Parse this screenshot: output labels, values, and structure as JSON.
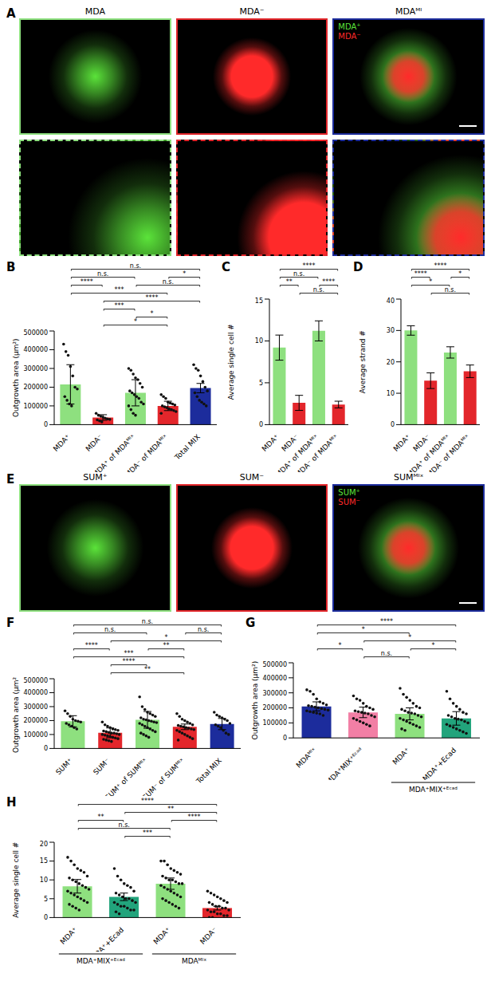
{
  "images": [
    {
      "panel": "A",
      "titles": [
        "MDA",
        "MDA⁻",
        "MDAᴹᴵ"
      ],
      "colors": [
        "#8ee07f",
        "#e3262b",
        "#1c2c9c"
      ],
      "legend": [
        {
          "name": "MDA⁺",
          "color": "#5be33a"
        },
        {
          "name": "MDA⁻",
          "color": "#ff2a2a"
        }
      ]
    },
    {
      "panel": "E",
      "titles": [
        "SUM⁺",
        "SUM⁻",
        "SUMᴹᴵˣ"
      ],
      "colors": [
        "#8ee07f",
        "#e3262b",
        "#1c2c9c"
      ],
      "legend": [
        {
          "name": "SUM⁺",
          "color": "#5be33a"
        },
        {
          "name": "SUM⁻",
          "color": "#ff2a2a"
        }
      ]
    }
  ],
  "chart_data": [
    {
      "panel": "B",
      "type": "bar",
      "ylabel": "Outgrowth area (μm²)",
      "categories": [
        "MDA⁺",
        "MDA⁻",
        "MDA⁺ of MDAᴹᴵˣ",
        "MDA⁻ of MDAᴹᴵˣ",
        "Total MIX"
      ],
      "values": [
        215000,
        38000,
        170000,
        100000,
        195000
      ],
      "errors": [
        105000,
        15000,
        70000,
        25000,
        25000
      ],
      "colors": [
        "#8ee07f",
        "#e3262b",
        "#8ee07f",
        "#e3262b",
        "#1c2c9c"
      ],
      "points": [
        [
          430000,
          390000,
          370000,
          310000,
          260000,
          200000,
          190000,
          150000,
          130000,
          110000,
          100000
        ],
        [
          60000,
          50000,
          45000,
          40000,
          35000,
          30000,
          28000,
          25000,
          20000,
          15000
        ],
        [
          300000,
          290000,
          270000,
          250000,
          240000,
          220000,
          200000,
          180000,
          170000,
          160000,
          150000,
          140000,
          120000,
          110000,
          100000,
          80000,
          60000,
          50000
        ],
        [
          160000,
          150000,
          140000,
          120000,
          115000,
          110000,
          105000,
          100000,
          95000,
          90000,
          85000,
          80000,
          75000,
          70000,
          60000
        ],
        [
          320000,
          300000,
          290000,
          260000,
          230000,
          200000,
          180000,
          170000,
          150000,
          130000,
          120000,
          110000,
          100000
        ]
      ],
      "ylim": [
        0,
        500000
      ],
      "yticks": [
        0,
        100000,
        200000,
        300000,
        400000,
        500000
      ],
      "significance": [
        {
          "from": 0,
          "to": 4,
          "label": "n.s."
        },
        {
          "from": 0,
          "to": 2,
          "label": "n.s."
        },
        {
          "from": 2,
          "to": 4,
          "label": "n.s."
        },
        {
          "from": 0,
          "to": 1,
          "label": "****"
        },
        {
          "from": 0,
          "to": 3,
          "label": "***"
        },
        {
          "from": 1,
          "to": 4,
          "label": "****"
        },
        {
          "from": 1,
          "to": 2,
          "label": "***"
        },
        {
          "from": 2,
          "to": 3,
          "label": "*"
        },
        {
          "from": 3,
          "to": 4,
          "label": "*"
        },
        {
          "from": 1,
          "to": 3,
          "label": "*"
        }
      ]
    },
    {
      "panel": "C",
      "type": "bar",
      "ylabel": "Average single cell #",
      "categories": [
        "MDA⁺",
        "MDA⁻",
        "MDA⁺ of MDAᴹᴵˣ",
        "MDA⁻ of MDAᴹᴵˣ"
      ],
      "values": [
        9.2,
        2.6,
        11.2,
        2.4
      ],
      "errors": [
        1.5,
        0.9,
        1.2,
        0.4
      ],
      "colors": [
        "#8ee07f",
        "#e3262b",
        "#8ee07f",
        "#e3262b"
      ],
      "ylim": [
        0,
        15
      ],
      "yticks": [
        0,
        5,
        10,
        15
      ],
      "significance": [
        {
          "from": 0,
          "to": 3,
          "label": "****"
        },
        {
          "from": 0,
          "to": 2,
          "label": "n.s."
        },
        {
          "from": 0,
          "to": 1,
          "label": "**"
        },
        {
          "from": 1,
          "to": 3,
          "label": "n.s."
        },
        {
          "from": 2,
          "to": 3,
          "label": "****"
        }
      ]
    },
    {
      "panel": "D",
      "type": "bar",
      "ylabel": "Average strand #",
      "categories": [
        "MDA⁺",
        "MDA⁻",
        "MDA⁺ of MDAᴹᴵˣ",
        "MDA⁻ of MDAᴹᴵˣ"
      ],
      "values": [
        30,
        14,
        23,
        17
      ],
      "errors": [
        1.5,
        2.5,
        1.8,
        2
      ],
      "colors": [
        "#8ee07f",
        "#e3262b",
        "#8ee07f",
        "#e3262b"
      ],
      "ylim": [
        0,
        40
      ],
      "yticks": [
        0,
        10,
        20,
        30,
        40
      ],
      "significance": [
        {
          "from": 0,
          "to": 3,
          "label": "****"
        },
        {
          "from": 0,
          "to": 1,
          "label": "****"
        },
        {
          "from": 0,
          "to": 2,
          "label": "*"
        },
        {
          "from": 2,
          "to": 3,
          "label": "*"
        },
        {
          "from": 1,
          "to": 3,
          "label": "n.s."
        }
      ]
    },
    {
      "panel": "F",
      "type": "bar",
      "ylabel": "Outgrowth area (μm²)",
      "categories": [
        "SUM⁺",
        "SUM⁻",
        "SUM⁺ of SUMᴹᴵˣ",
        "SUM⁻ of SUMᴹᴵˣ",
        "Total MIX"
      ],
      "values": [
        195000,
        112000,
        205000,
        155000,
        175000
      ],
      "errors": [
        40000,
        35000,
        60000,
        20000,
        40000
      ],
      "colors": [
        "#8ee07f",
        "#e3262b",
        "#8ee07f",
        "#e3262b",
        "#1c2c9c"
      ],
      "points": [
        [
          270000,
          250000,
          230000,
          210000,
          200000,
          195000,
          190000,
          180000,
          170000,
          160000,
          150000,
          140000
        ],
        [
          190000,
          170000,
          160000,
          150000,
          140000,
          135000,
          130000,
          125000,
          120000,
          115000,
          110000,
          110000,
          105000,
          100000,
          100000,
          95000,
          90000,
          85000,
          80000,
          75000,
          70000,
          65000,
          60000,
          55000,
          50000
        ],
        [
          370000,
          300000,
          280000,
          260000,
          250000,
          240000,
          230000,
          220000,
          210000,
          205000,
          200000,
          195000,
          190000,
          185000,
          180000,
          170000,
          160000,
          150000,
          140000,
          130000,
          120000,
          110000,
          100000,
          90000,
          80000
        ],
        [
          250000,
          230000,
          210000,
          200000,
          190000,
          180000,
          170000,
          165000,
          160000,
          155000,
          150000,
          145000,
          140000,
          135000,
          130000,
          120000,
          110000,
          100000,
          90000,
          80000,
          70000,
          60000
        ],
        [
          260000,
          240000,
          230000,
          220000,
          210000,
          200000,
          180000,
          170000,
          160000,
          150000,
          130000,
          110000,
          100000
        ]
      ],
      "ylim": [
        0,
        500000
      ],
      "yticks": [
        0,
        100000,
        200000,
        300000,
        400000,
        500000
      ],
      "significance": [
        {
          "from": 0,
          "to": 4,
          "label": "n.s."
        },
        {
          "from": 0,
          "to": 2,
          "label": "n.s."
        },
        {
          "from": 1,
          "to": 4,
          "label": "*"
        },
        {
          "from": 0,
          "to": 1,
          "label": "****"
        },
        {
          "from": 0,
          "to": 3,
          "label": "***"
        },
        {
          "from": 1,
          "to": 2,
          "label": "****"
        },
        {
          "from": 1,
          "to": 3,
          "label": "**"
        },
        {
          "from": 2,
          "to": 3,
          "label": "**"
        },
        {
          "from": 3,
          "to": 4,
          "label": "n.s."
        }
      ]
    },
    {
      "panel": "G",
      "type": "bar",
      "ylabel": "Outgrowth area (μm²)",
      "categories": [
        "MDAᴹᴵˣ",
        "MDA⁺MIX⁺ᴱᶜᵃᵈ",
        "MDA⁺",
        "MDA⁺+Ecad"
      ],
      "values": [
        210000,
        170000,
        160000,
        130000
      ],
      "errors": [
        30000,
        35000,
        40000,
        45000
      ],
      "colors": [
        "#1c2c9c",
        "#f27fa5",
        "#8ee07f",
        "#22a47c"
      ],
      "points": [
        [
          320000,
          310000,
          290000,
          260000,
          240000,
          230000,
          220000,
          215000,
          210000,
          205000,
          200000,
          195000,
          190000,
          185000,
          180000,
          175000,
          170000,
          165000,
          160000,
          150000
        ],
        [
          280000,
          260000,
          250000,
          230000,
          210000,
          200000,
          190000,
          180000,
          175000,
          170000,
          165000,
          160000,
          150000,
          140000,
          130000,
          120000,
          110000,
          100000,
          90000,
          80000
        ],
        [
          330000,
          290000,
          270000,
          250000,
          230000,
          210000,
          200000,
          190000,
          180000,
          170000,
          165000,
          160000,
          150000,
          140000,
          130000,
          120000,
          110000,
          100000,
          90000,
          80000,
          70000,
          60000,
          50000
        ],
        [
          310000,
          260000,
          230000,
          210000,
          190000,
          170000,
          160000,
          150000,
          140000,
          130000,
          125000,
          120000,
          110000,
          100000,
          90000,
          80000,
          70000,
          60000,
          50000,
          40000,
          30000
        ]
      ],
      "ylim": [
        0,
        500000
      ],
      "yticks": [
        0,
        100000,
        200000,
        300000,
        400000,
        500000
      ],
      "significance": [
        {
          "from": 0,
          "to": 3,
          "label": "****"
        },
        {
          "from": 0,
          "to": 2,
          "label": "*"
        },
        {
          "from": 1,
          "to": 3,
          "label": "*"
        },
        {
          "from": 0,
          "to": 1,
          "label": "*"
        },
        {
          "from": 1,
          "to": 2,
          "label": "n.s."
        },
        {
          "from": 2,
          "to": 3,
          "label": "*"
        }
      ],
      "groups": [
        {
          "from": 2,
          "to": 3,
          "label": "MDA⁺MIX⁺ᴱᶜᵃᵈ"
        }
      ]
    },
    {
      "panel": "H",
      "type": "bar",
      "ylabel": "Average single cell #",
      "categories": [
        "MDA⁺",
        "MDA⁺+Ecad",
        "MDA⁺",
        "MDA⁻"
      ],
      "values": [
        8.3,
        5.5,
        9,
        2.5
      ],
      "errors": [
        1.8,
        1,
        1.5,
        0.5
      ],
      "colors": [
        "#8ee07f",
        "#22a47c",
        "#8ee07f",
        "#e3262b"
      ],
      "points": [
        [
          16,
          15,
          14,
          13,
          12.5,
          12,
          11,
          10.5,
          10,
          9.5,
          9,
          8.5,
          8,
          7.5,
          7,
          6.5,
          6,
          5.5,
          5,
          4.5,
          4,
          3.5,
          3,
          2.5,
          2
        ],
        [
          13,
          11,
          10,
          9,
          8.5,
          8,
          7,
          6.5,
          6,
          5.5,
          5,
          5,
          4.5,
          4,
          4,
          3.5,
          3,
          3,
          2.5,
          2,
          2,
          1.5,
          1
        ],
        [
          15,
          15,
          14,
          13,
          12.5,
          12,
          11.5,
          11,
          10.5,
          10,
          10,
          9.5,
          9,
          9,
          8.5,
          8,
          7.5,
          7,
          6.5,
          6,
          5.5,
          5,
          4.5,
          4,
          3.5,
          3,
          2.5
        ],
        [
          7,
          6.5,
          6,
          5.5,
          5,
          4.5,
          4,
          4,
          3.5,
          3,
          3,
          2.5,
          2.5,
          2,
          2,
          1.5,
          1.5,
          1,
          1,
          0.5,
          0.5,
          0,
          0
        ]
      ],
      "ylim": [
        0,
        20
      ],
      "yticks": [
        0,
        5,
        10,
        15,
        20
      ],
      "significance": [
        {
          "from": 0,
          "to": 3,
          "label": "****"
        },
        {
          "from": 1,
          "to": 3,
          "label": "**"
        },
        {
          "from": 0,
          "to": 1,
          "label": "**"
        },
        {
          "from": 0,
          "to": 2,
          "label": "n.s."
        },
        {
          "from": 1,
          "to": 2,
          "label": "***"
        },
        {
          "from": 2,
          "to": 3,
          "label": "****"
        }
      ],
      "groups": [
        {
          "from": 0,
          "to": 1,
          "label": "MDA⁺MIX⁺ᴱᶜᵃᵈ"
        },
        {
          "from": 2,
          "to": 3,
          "label": "MDAᴹᴵˣ"
        }
      ]
    }
  ]
}
